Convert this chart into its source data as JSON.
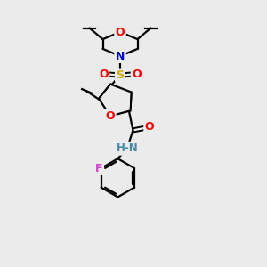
{
  "bg_color": "#ebebeb",
  "atom_colors": {
    "C": "#000000",
    "N": "#0000cc",
    "O": "#ff0000",
    "S": "#ccaa00",
    "F": "#cc44cc",
    "H": "#000000",
    "NH": "#4488aa"
  },
  "bond_color": "#000000",
  "bond_width": 1.6,
  "figsize": [
    3.0,
    3.0
  ],
  "dpi": 100
}
